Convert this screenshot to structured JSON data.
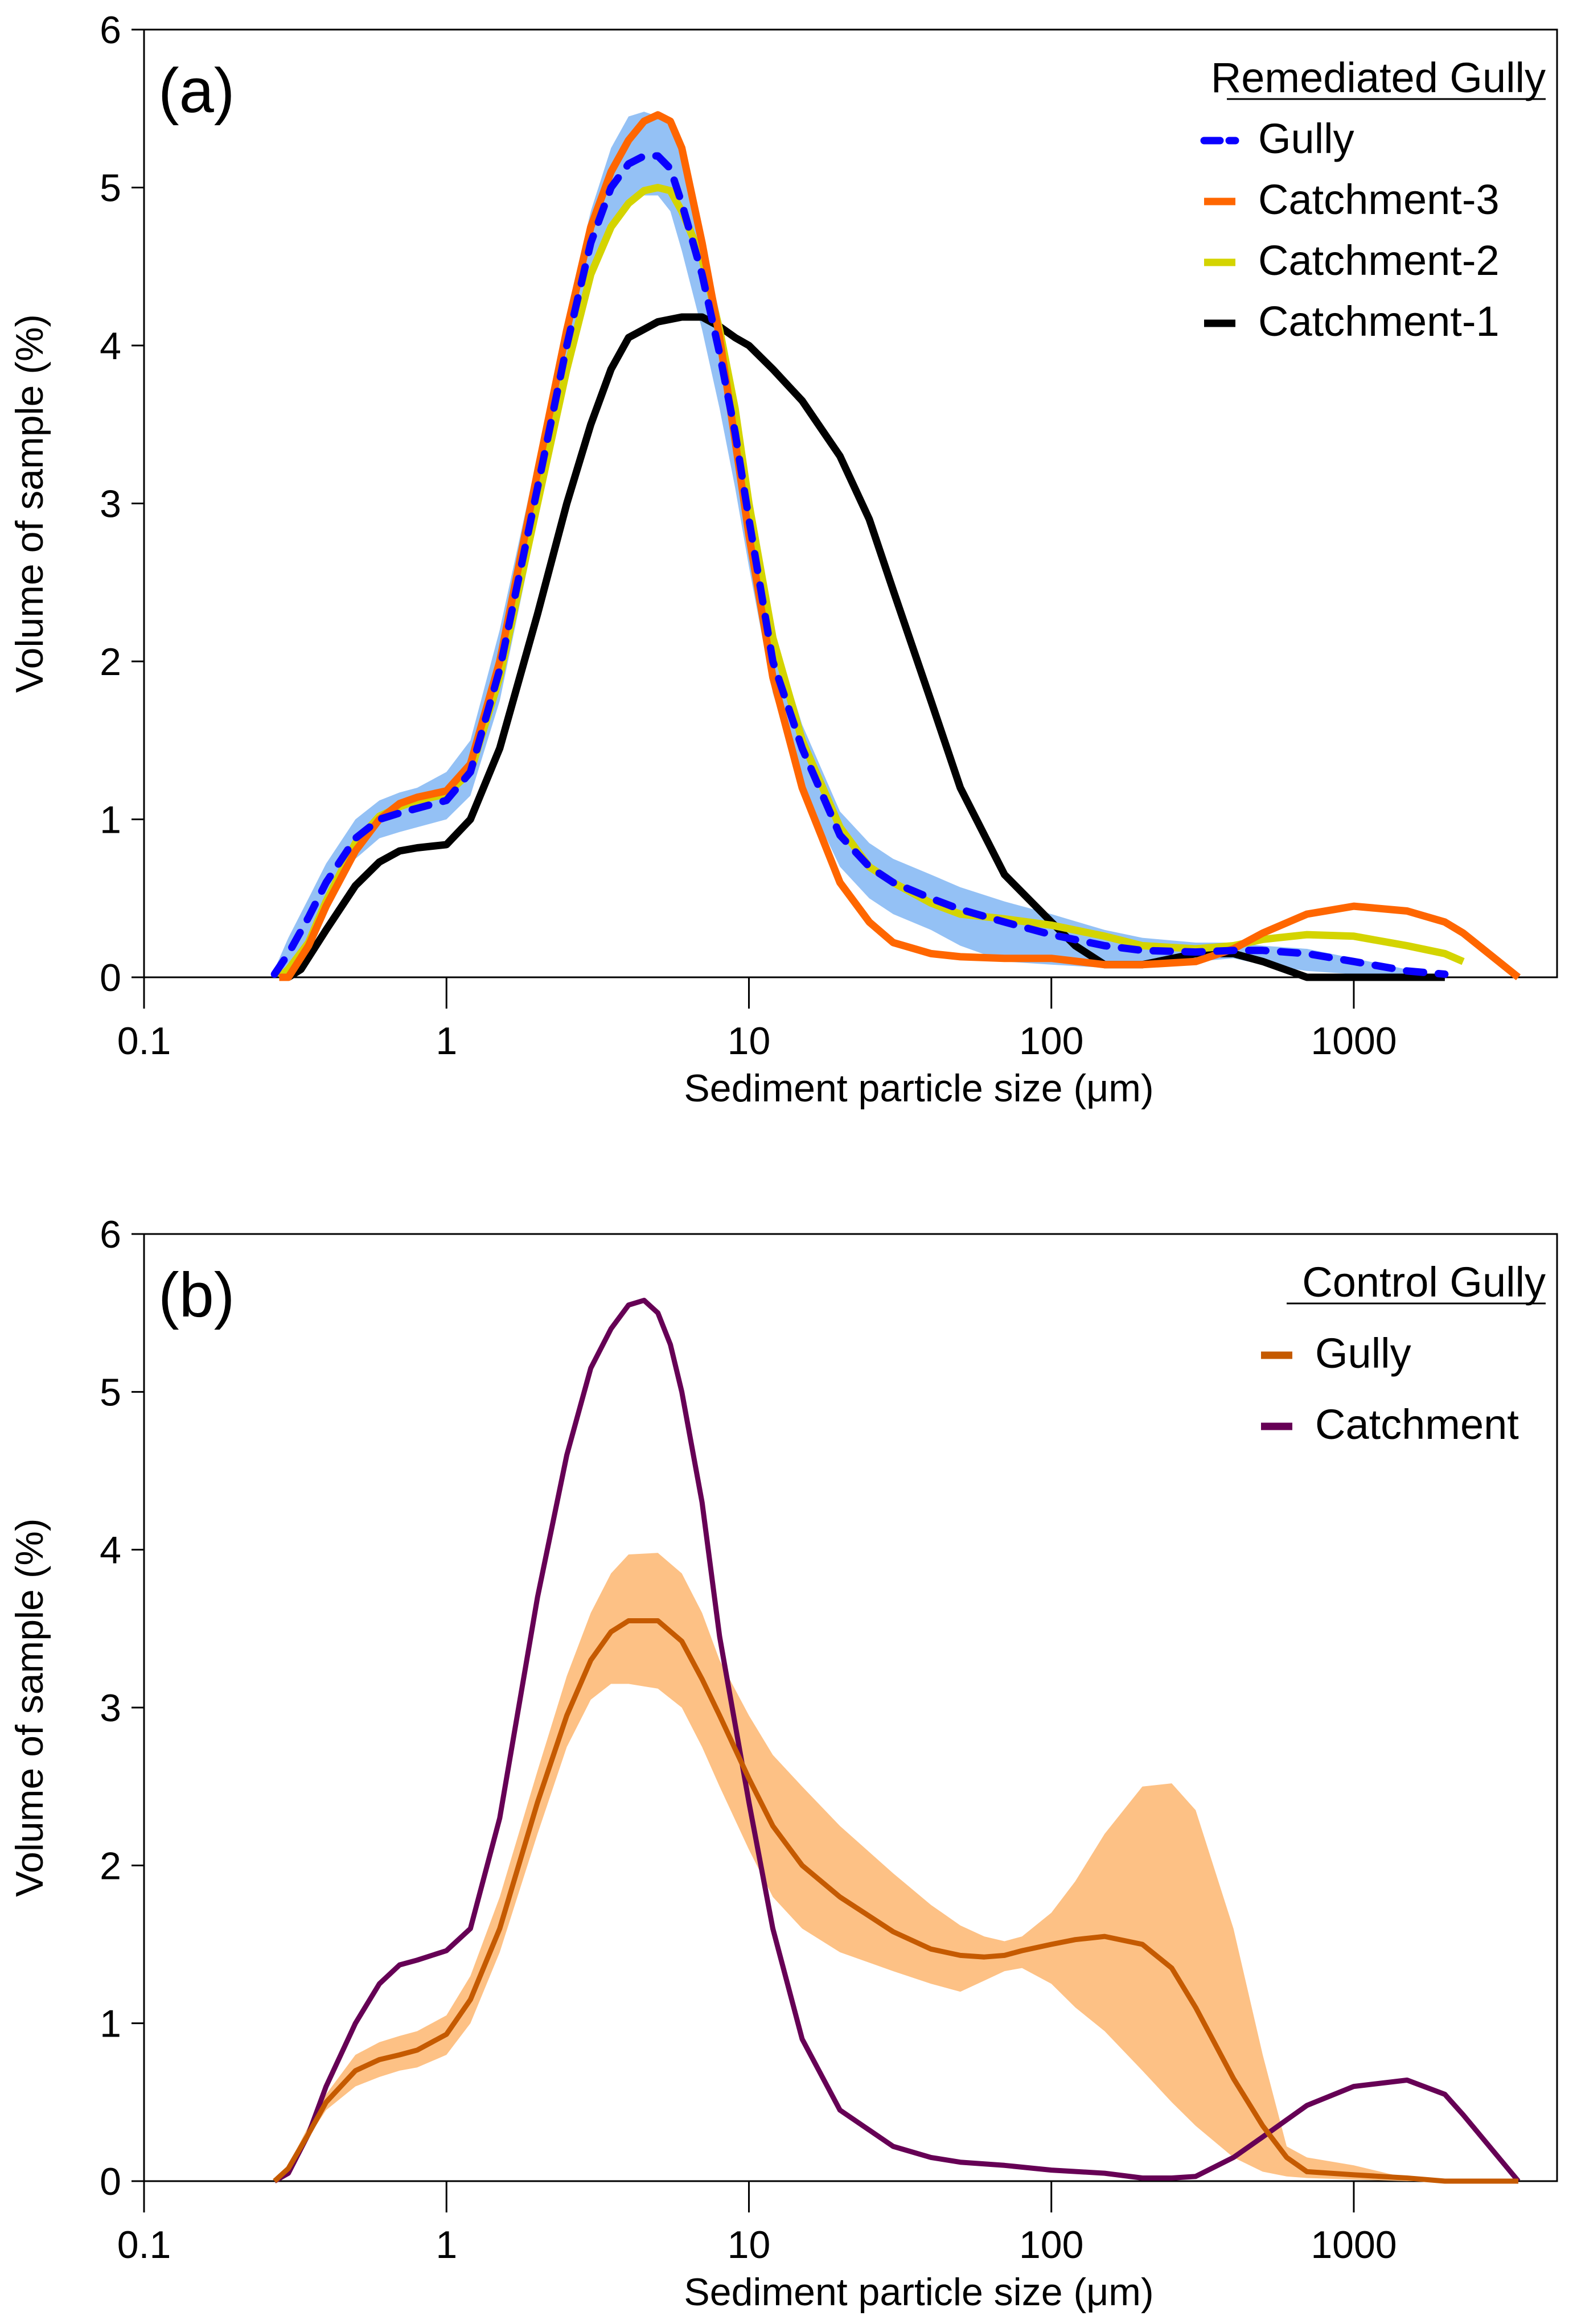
{
  "chart_data": [
    {
      "type": "line",
      "panel_label": "(a)",
      "xlabel": "Sediment particle size (μm)",
      "ylabel": "Volume of sample (%)",
      "xscale": "log",
      "xlim": [
        0.1,
        4700
      ],
      "ylim": [
        0,
        6
      ],
      "xticks": [
        0.1,
        1,
        10,
        100,
        1000
      ],
      "xtick_labels": [
        "0.1",
        "1",
        "10",
        "100",
        "1000"
      ],
      "yticks": [
        0,
        1,
        2,
        3,
        4,
        5,
        6
      ],
      "ytick_labels": [
        "0",
        "1",
        "2",
        "3",
        "4",
        "5",
        "6"
      ],
      "grid": false,
      "legend": {
        "title": "Remediated Gully",
        "placement": "top-right",
        "entries": [
          "Gully",
          "Catchment-3",
          "Catchment-2",
          "Catchment-1"
        ]
      },
      "band": {
        "name": "Gully range",
        "color": "#94c1f5",
        "x": [
          0.27,
          0.3,
          0.35,
          0.4,
          0.5,
          0.6,
          0.7,
          0.8,
          1.0,
          1.2,
          1.5,
          2,
          2.5,
          3,
          3.5,
          4,
          4.5,
          5,
          5.5,
          6,
          7,
          8,
          9,
          10,
          12,
          15,
          20,
          25,
          30,
          40,
          50,
          70,
          100,
          150,
          200,
          300,
          400,
          500,
          700,
          1000,
          1500,
          2000
        ],
        "upper": [
          0.05,
          0.25,
          0.5,
          0.72,
          1.0,
          1.12,
          1.17,
          1.2,
          1.3,
          1.5,
          2.2,
          3.3,
          4.2,
          4.85,
          5.25,
          5.45,
          5.48,
          5.45,
          5.4,
          5.2,
          4.7,
          4.2,
          3.7,
          3.1,
          2.2,
          1.6,
          1.05,
          0.85,
          0.75,
          0.65,
          0.57,
          0.48,
          0.4,
          0.3,
          0.25,
          0.22,
          0.22,
          0.2,
          0.18,
          0.12,
          0.05,
          0.0
        ],
        "lower": [
          0.0,
          0.05,
          0.25,
          0.45,
          0.75,
          0.88,
          0.92,
          0.95,
          1.0,
          1.15,
          1.75,
          2.9,
          3.8,
          4.45,
          4.75,
          4.9,
          4.95,
          4.95,
          4.85,
          4.6,
          4.1,
          3.6,
          3.1,
          2.6,
          1.8,
          1.2,
          0.7,
          0.5,
          0.4,
          0.3,
          0.2,
          0.1,
          0.08,
          0.06,
          0.06,
          0.1,
          0.12,
          0.08,
          0.04,
          0.02,
          0.0,
          0.0
        ]
      },
      "series": [
        {
          "name": "Gully",
          "color": "#0a00ff",
          "style": "dashed",
          "x": [
            0.27,
            0.3,
            0.35,
            0.4,
            0.5,
            0.6,
            0.7,
            0.8,
            1.0,
            1.2,
            1.5,
            2,
            2.5,
            3,
            3.5,
            4,
            4.5,
            5,
            5.5,
            6,
            7,
            8,
            9,
            10,
            12,
            15,
            20,
            25,
            30,
            40,
            50,
            70,
            100,
            150,
            200,
            300,
            400,
            500,
            700,
            1000,
            1500,
            2000
          ],
          "y": [
            0.02,
            0.15,
            0.38,
            0.6,
            0.88,
            1.0,
            1.04,
            1.07,
            1.12,
            1.3,
            1.95,
            3.1,
            4.0,
            4.65,
            5.0,
            5.15,
            5.2,
            5.2,
            5.12,
            4.9,
            4.45,
            3.95,
            3.45,
            2.9,
            2.0,
            1.45,
            0.9,
            0.7,
            0.6,
            0.5,
            0.43,
            0.35,
            0.27,
            0.2,
            0.17,
            0.16,
            0.17,
            0.17,
            0.15,
            0.1,
            0.04,
            0.02
          ]
        },
        {
          "name": "Catchment-3",
          "color": "#ff6600",
          "style": "solid",
          "x": [
            0.28,
            0.3,
            0.35,
            0.4,
            0.5,
            0.6,
            0.7,
            0.8,
            1.0,
            1.2,
            1.5,
            2,
            2.5,
            3,
            3.5,
            4,
            4.5,
            5,
            5.5,
            6,
            7,
            8,
            9,
            10,
            12,
            15,
            20,
            25,
            30,
            40,
            50,
            70,
            100,
            150,
            200,
            300,
            400,
            500,
            700,
            1000,
            1500,
            2000,
            2300,
            3500
          ],
          "y": [
            0.0,
            0.0,
            0.2,
            0.45,
            0.8,
            1.0,
            1.1,
            1.14,
            1.18,
            1.35,
            2.0,
            3.2,
            4.1,
            4.75,
            5.1,
            5.3,
            5.42,
            5.46,
            5.42,
            5.25,
            4.65,
            4.05,
            3.4,
            2.8,
            1.9,
            1.2,
            0.6,
            0.35,
            0.22,
            0.15,
            0.13,
            0.12,
            0.12,
            0.08,
            0.08,
            0.1,
            0.18,
            0.28,
            0.4,
            0.45,
            0.42,
            0.35,
            0.28,
            0.0
          ]
        },
        {
          "name": "Catchment-2",
          "color": "#d4d400",
          "style": "solid",
          "x": [
            0.28,
            0.3,
            0.35,
            0.4,
            0.5,
            0.6,
            0.7,
            0.8,
            1.0,
            1.2,
            1.5,
            2,
            2.5,
            3,
            3.5,
            4,
            4.5,
            5,
            5.5,
            6,
            7,
            8,
            9,
            10,
            12,
            15,
            20,
            25,
            30,
            40,
            50,
            70,
            100,
            150,
            200,
            300,
            400,
            500,
            700,
            1000,
            1500,
            2000,
            2300
          ],
          "y": [
            0.0,
            0.05,
            0.22,
            0.48,
            0.85,
            1.02,
            1.08,
            1.12,
            1.16,
            1.3,
            1.9,
            3.0,
            3.85,
            4.45,
            4.75,
            4.9,
            4.98,
            5.0,
            4.98,
            4.85,
            4.55,
            4.1,
            3.6,
            3.0,
            2.15,
            1.5,
            0.95,
            0.7,
            0.6,
            0.47,
            0.4,
            0.37,
            0.33,
            0.26,
            0.2,
            0.18,
            0.2,
            0.24,
            0.27,
            0.26,
            0.2,
            0.15,
            0.1
          ]
        },
        {
          "name": "Catchment-1",
          "color": "#000000",
          "style": "solid",
          "x": [
            0.3,
            0.33,
            0.4,
            0.5,
            0.6,
            0.7,
            0.8,
            1.0,
            1.2,
            1.5,
            2,
            2.5,
            3,
            3.5,
            4,
            5,
            6,
            7,
            8,
            9,
            10,
            12,
            15,
            20,
            25,
            30,
            40,
            50,
            70,
            100,
            120,
            150,
            200,
            300,
            400,
            500,
            700,
            1000,
            2000
          ],
          "y": [
            0.0,
            0.05,
            0.3,
            0.58,
            0.73,
            0.8,
            0.82,
            0.84,
            1.0,
            1.45,
            2.3,
            3.0,
            3.5,
            3.85,
            4.05,
            4.15,
            4.18,
            4.18,
            4.12,
            4.05,
            4.0,
            3.85,
            3.65,
            3.3,
            2.9,
            2.45,
            1.75,
            1.2,
            0.65,
            0.35,
            0.2,
            0.08,
            0.08,
            0.15,
            0.15,
            0.1,
            0.0,
            0.0,
            0.0
          ]
        }
      ]
    },
    {
      "type": "line",
      "panel_label": "(b)",
      "xlabel": "Sediment particle size (μm)",
      "ylabel": "Volume of sample (%)",
      "xscale": "log",
      "xlim": [
        0.1,
        4700
      ],
      "ylim": [
        0,
        6
      ],
      "xticks": [
        0.1,
        1,
        10,
        100,
        1000
      ],
      "xtick_labels": [
        "0.1",
        "1",
        "10",
        "100",
        "1000"
      ],
      "yticks": [
        0,
        1,
        2,
        3,
        4,
        5,
        6
      ],
      "ytick_labels": [
        "0",
        "1",
        "2",
        "3",
        "4",
        "5",
        "6"
      ],
      "grid": false,
      "legend": {
        "title": "Control Gully",
        "placement": "top-right",
        "entries": [
          "Gully",
          "Catchment"
        ]
      },
      "band": {
        "name": "Gully range",
        "color": "#fdc185",
        "x": [
          0.27,
          0.3,
          0.35,
          0.4,
          0.5,
          0.6,
          0.7,
          0.8,
          1.0,
          1.2,
          1.5,
          2,
          2.5,
          3,
          3.5,
          4,
          5,
          6,
          7,
          8,
          10,
          12,
          15,
          20,
          30,
          40,
          50,
          60,
          70,
          80,
          100,
          120,
          150,
          200,
          250,
          300,
          400,
          500,
          600,
          700,
          1000,
          1500,
          2000
        ],
        "upper": [
          0.02,
          0.1,
          0.35,
          0.55,
          0.8,
          0.88,
          0.92,
          0.95,
          1.05,
          1.3,
          1.8,
          2.6,
          3.2,
          3.6,
          3.85,
          3.97,
          3.98,
          3.85,
          3.6,
          3.3,
          2.95,
          2.7,
          2.5,
          2.25,
          1.95,
          1.75,
          1.62,
          1.55,
          1.52,
          1.55,
          1.7,
          1.9,
          2.2,
          2.5,
          2.52,
          2.35,
          1.6,
          0.8,
          0.22,
          0.15,
          0.1,
          0.02,
          0.0
        ],
        "lower": [
          0.0,
          0.05,
          0.28,
          0.45,
          0.6,
          0.66,
          0.7,
          0.72,
          0.8,
          1.0,
          1.45,
          2.2,
          2.75,
          3.05,
          3.15,
          3.15,
          3.12,
          3.0,
          2.75,
          2.5,
          2.1,
          1.8,
          1.6,
          1.45,
          1.33,
          1.25,
          1.2,
          1.27,
          1.33,
          1.35,
          1.25,
          1.1,
          0.95,
          0.7,
          0.5,
          0.35,
          0.15,
          0.06,
          0.03,
          0.02,
          0.01,
          0.0,
          0.0
        ]
      },
      "series": [
        {
          "name": "Gully",
          "color": "#c55a00",
          "style": "solid",
          "x": [
            0.27,
            0.3,
            0.35,
            0.4,
            0.5,
            0.6,
            0.7,
            0.8,
            1.0,
            1.2,
            1.5,
            2,
            2.5,
            3,
            3.5,
            4,
            5,
            6,
            7,
            8,
            10,
            12,
            15,
            20,
            30,
            40,
            50,
            60,
            70,
            80,
            100,
            120,
            150,
            200,
            250,
            300,
            400,
            500,
            600,
            700,
            1000,
            1500,
            2000,
            3500
          ],
          "y": [
            0.0,
            0.08,
            0.3,
            0.5,
            0.7,
            0.77,
            0.8,
            0.83,
            0.93,
            1.15,
            1.6,
            2.4,
            2.95,
            3.3,
            3.48,
            3.55,
            3.55,
            3.42,
            3.18,
            2.95,
            2.55,
            2.25,
            2.0,
            1.8,
            1.58,
            1.47,
            1.43,
            1.42,
            1.43,
            1.46,
            1.5,
            1.53,
            1.55,
            1.5,
            1.35,
            1.1,
            0.65,
            0.35,
            0.15,
            0.06,
            0.04,
            0.02,
            0.0,
            0.0
          ]
        },
        {
          "name": "Catchment",
          "color": "#660055",
          "style": "solid",
          "x": [
            0.27,
            0.3,
            0.35,
            0.4,
            0.5,
            0.6,
            0.7,
            0.8,
            1.0,
            1.2,
            1.5,
            2,
            2.5,
            3,
            3.5,
            4,
            4.5,
            5,
            5.5,
            6,
            7,
            8,
            10,
            12,
            15,
            20,
            30,
            40,
            50,
            70,
            100,
            150,
            200,
            250,
            300,
            400,
            500,
            700,
            1000,
            1500,
            2000,
            2300,
            3500
          ],
          "y": [
            0.0,
            0.05,
            0.3,
            0.6,
            1.0,
            1.25,
            1.37,
            1.4,
            1.46,
            1.6,
            2.3,
            3.7,
            4.6,
            5.15,
            5.4,
            5.55,
            5.58,
            5.5,
            5.3,
            5.0,
            4.3,
            3.45,
            2.4,
            1.6,
            0.9,
            0.45,
            0.22,
            0.15,
            0.12,
            0.1,
            0.07,
            0.05,
            0.02,
            0.02,
            0.03,
            0.15,
            0.28,
            0.48,
            0.6,
            0.64,
            0.55,
            0.42,
            0.0
          ]
        }
      ]
    }
  ]
}
